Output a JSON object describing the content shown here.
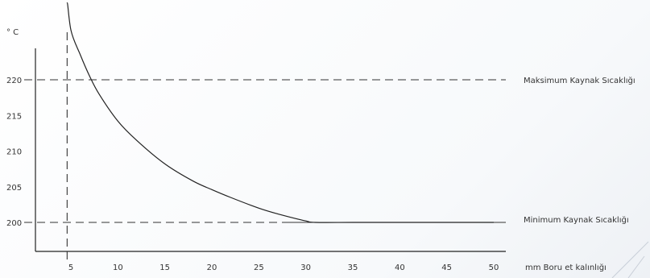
{
  "chart_data": {
    "type": "line",
    "ylabel": "° C",
    "xlabel": "mm Boru et kalınlığı",
    "x_ticks": [
      5,
      10,
      15,
      20,
      25,
      30,
      35,
      40,
      45,
      50
    ],
    "y_ticks": [
      200,
      205,
      210,
      215,
      220
    ],
    "xlim": [
      0,
      51
    ],
    "ylim": [
      195,
      231
    ],
    "grid": false,
    "series": [
      {
        "x": [
          4.6,
          5,
          6,
          7,
          8,
          10,
          12,
          15,
          18,
          20,
          22,
          25,
          27,
          30,
          31,
          35,
          40,
          45,
          50
        ],
        "y": [
          232,
          227,
          223.5,
          220.5,
          218,
          214.2,
          211.5,
          208.2,
          205.8,
          204.6,
          203.5,
          202,
          201.2,
          200.2,
          200,
          200,
          200,
          200,
          200
        ]
      }
    ],
    "reference_lines": {
      "horizontal": [
        {
          "y": 220,
          "style": "dashed",
          "label": "Maksimum Kaynak Sıcaklığı"
        },
        {
          "y": 200,
          "style": "dashed-then-solid",
          "label": "Minimum Kaynak Sıcaklığı"
        }
      ],
      "vertical": [
        {
          "x": 4.6,
          "style": "dashed"
        }
      ]
    },
    "annotations": [
      "Maksimum Kaynak Sıcaklığı",
      "Minimum Kaynak Sıcaklığı"
    ]
  }
}
